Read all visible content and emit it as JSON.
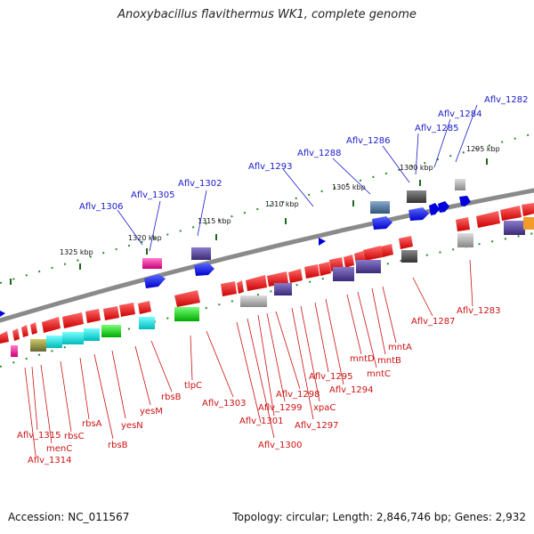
{
  "title": "Anoxybacillus flavithermus WK1, complete genome",
  "footer": {
    "accession": "Accession: NC_011567",
    "summary": "Topology: circular; Length: 2,846,746 bp; Genes: 2,932"
  },
  "scale_ticks": [
    "1295 kbp",
    "1300 kbp",
    "1305 kbp",
    "1310 kbp",
    "1315 kbp",
    "1320 kbp",
    "1325 kbp"
  ],
  "top_labels": [
    "Aflv_1282",
    "Aflv_1284",
    "Aflv_1285",
    "Aflv_1286",
    "Aflv_1288",
    "Aflv_1293",
    "Aflv_1302",
    "Aflv_1305",
    "Aflv_1306"
  ],
  "bottom_labels": [
    "Aflv_1283",
    "Aflv_1287",
    "mntA",
    "mntB",
    "mntC",
    "mntD",
    "Aflv_1294",
    "Aflv_1295",
    "xpaC",
    "Aflv_1297",
    "Aflv_1298",
    "Aflv_1299",
    "Aflv_1301",
    "Aflv_1300",
    "Aflv_1303",
    "tlpC",
    "rbsB",
    "yesM",
    "yesN",
    "rbsB",
    "rbsA",
    "rbsC",
    "menC",
    "Aflv_1315",
    "Aflv_1314"
  ],
  "colors": {
    "forward": "#0a0ae0",
    "reverse": "#e00000",
    "backbone": "#888888",
    "scale": "#2a8a2a",
    "top_label": "#1a1acc",
    "bottom_label": "#cc1111"
  }
}
